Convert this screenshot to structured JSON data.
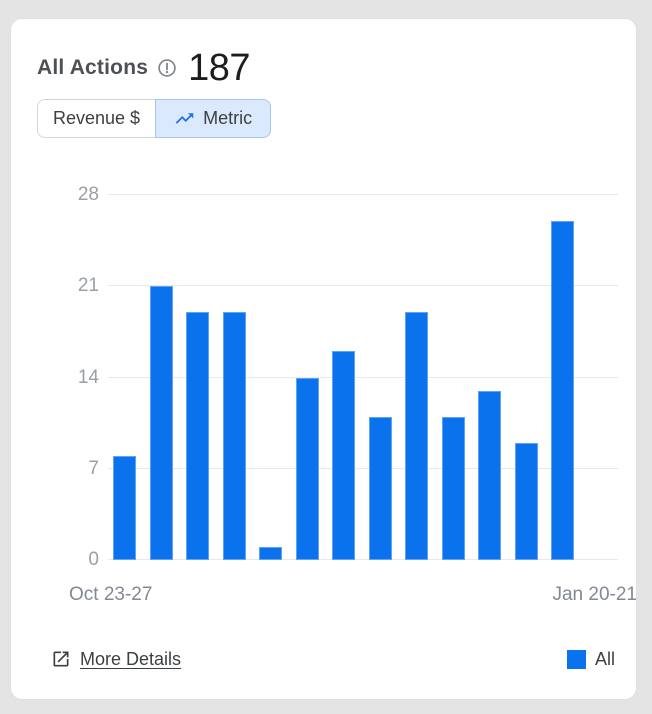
{
  "card": {
    "title": "All Actions",
    "value": "187",
    "tabs": [
      {
        "label": "Revenue $",
        "active": false
      },
      {
        "label": "Metric",
        "active": true,
        "icon": "trending-up-icon"
      }
    ],
    "more_details_label": "More Details"
  },
  "chart_data": {
    "type": "bar",
    "series": [
      {
        "name": "All",
        "values": [
          8,
          21,
          19,
          19,
          1,
          14,
          16,
          11,
          19,
          11,
          13,
          9,
          26
        ]
      }
    ],
    "values_total": 187,
    "y_ticks": [
      0,
      7,
      14,
      21,
      28
    ],
    "ylim": [
      0,
      28
    ],
    "x_first_label": "Oct 23-27",
    "x_last_label": "Jan 20-21",
    "bar_color": "#0b72ee",
    "grid": true,
    "legend_position": "bottom-right"
  },
  "colors": {
    "page_bg": "#e4e4e4",
    "card_bg": "#ffffff",
    "accent_blue": "#0b72ee",
    "tab_active_bg": "#dbe9fd",
    "tab_active_border": "#a3c4f5",
    "icon_blue": "#1a73e8",
    "text_dark": "#3c4043",
    "text_gray": "#828994",
    "tick_gray": "#9aa0a6"
  }
}
